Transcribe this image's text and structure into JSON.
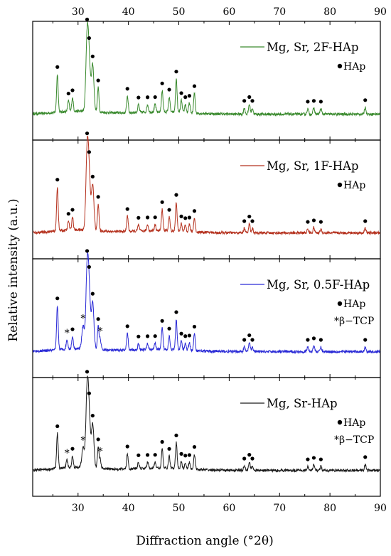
{
  "chart_data": {
    "type": "line",
    "xlabel": "Diffraction angle (°2θ)",
    "ylabel": "Relative intensity (a.u.)",
    "xlim": [
      21,
      90
    ],
    "xticks": [
      30,
      40,
      50,
      60,
      70,
      80,
      90
    ],
    "grid": false,
    "legend_marker_label": "HAp",
    "legend_tcp_label": "*β−TCP",
    "hap_peak_positions": [
      25.9,
      28.1,
      28.9,
      31.8,
      32.2,
      32.9,
      34.0,
      39.8,
      42.0,
      43.8,
      45.3,
      46.7,
      48.1,
      49.5,
      50.5,
      51.3,
      52.1,
      53.1,
      63.0,
      64.0,
      64.6,
      75.6,
      76.8,
      78.2,
      87.0
    ],
    "tcp_peak_positions": [
      27.8,
      31.0,
      34.4
    ],
    "panels": [
      {
        "name": "Mg, Sr, 2F-HAp",
        "color": "#3a8a2e",
        "show_tcp": false,
        "peaks": [
          [
            25.9,
            0.5
          ],
          [
            28.1,
            0.14
          ],
          [
            28.9,
            0.18
          ],
          [
            31.8,
            0.95
          ],
          [
            32.2,
            0.6
          ],
          [
            32.9,
            0.62
          ],
          [
            34.0,
            0.32
          ],
          [
            39.8,
            0.22
          ],
          [
            42.0,
            0.1
          ],
          [
            43.8,
            0.1
          ],
          [
            45.3,
            0.1
          ],
          [
            46.7,
            0.28
          ],
          [
            48.1,
            0.2
          ],
          [
            49.5,
            0.44
          ],
          [
            50.5,
            0.16
          ],
          [
            51.3,
            0.11
          ],
          [
            52.1,
            0.13
          ],
          [
            53.1,
            0.26
          ],
          [
            63.0,
            0.08
          ],
          [
            64.0,
            0.13
          ],
          [
            64.6,
            0.08
          ],
          [
            75.6,
            0.07
          ],
          [
            76.8,
            0.08
          ],
          [
            78.2,
            0.07
          ],
          [
            87.0,
            0.09
          ]
        ]
      },
      {
        "name": "Mg, Sr, 1F-HAp",
        "color": "#b5321f",
        "show_tcp": false,
        "peaks": [
          [
            25.9,
            0.58
          ],
          [
            28.1,
            0.12
          ],
          [
            28.9,
            0.17
          ],
          [
            31.8,
            1.0
          ],
          [
            32.2,
            0.65
          ],
          [
            32.9,
            0.6
          ],
          [
            34.0,
            0.35
          ],
          [
            39.8,
            0.2
          ],
          [
            42.0,
            0.08
          ],
          [
            43.8,
            0.08
          ],
          [
            45.3,
            0.08
          ],
          [
            46.7,
            0.28
          ],
          [
            48.1,
            0.18
          ],
          [
            49.5,
            0.38
          ],
          [
            50.5,
            0.1
          ],
          [
            51.3,
            0.08
          ],
          [
            52.1,
            0.09
          ],
          [
            53.1,
            0.18
          ],
          [
            63.0,
            0.06
          ],
          [
            64.0,
            0.12
          ],
          [
            64.6,
            0.06
          ],
          [
            75.6,
            0.05
          ],
          [
            76.8,
            0.07
          ],
          [
            78.2,
            0.05
          ],
          [
            87.0,
            0.06
          ]
        ]
      },
      {
        "name": "Mg, Sr, 0.5F-HAp",
        "color": "#2a2ad6",
        "show_tcp": true,
        "peaks": [
          [
            25.9,
            0.58
          ],
          [
            27.8,
            0.12
          ],
          [
            28.9,
            0.16
          ],
          [
            31.0,
            0.3
          ],
          [
            31.8,
            1.0
          ],
          [
            32.2,
            0.7
          ],
          [
            32.9,
            0.62
          ],
          [
            34.0,
            0.3
          ],
          [
            34.4,
            0.14
          ],
          [
            39.8,
            0.22
          ],
          [
            42.0,
            0.08
          ],
          [
            43.8,
            0.08
          ],
          [
            45.3,
            0.08
          ],
          [
            46.7,
            0.28
          ],
          [
            48.1,
            0.18
          ],
          [
            49.5,
            0.4
          ],
          [
            50.5,
            0.12
          ],
          [
            51.3,
            0.09
          ],
          [
            52.1,
            0.1
          ],
          [
            53.1,
            0.22
          ],
          [
            63.0,
            0.06
          ],
          [
            64.0,
            0.12
          ],
          [
            64.6,
            0.06
          ],
          [
            75.6,
            0.06
          ],
          [
            76.8,
            0.08
          ],
          [
            78.2,
            0.06
          ],
          [
            87.0,
            0.06
          ]
        ]
      },
      {
        "name": "Mg, Sr-HAp",
        "color": "#1a1a1a",
        "show_tcp": true,
        "peaks": [
          [
            25.9,
            0.46
          ],
          [
            27.8,
            0.1
          ],
          [
            28.9,
            0.15
          ],
          [
            31.0,
            0.26
          ],
          [
            31.8,
            1.0
          ],
          [
            32.2,
            0.6
          ],
          [
            32.9,
            0.58
          ],
          [
            34.0,
            0.28
          ],
          [
            34.4,
            0.12
          ],
          [
            39.8,
            0.2
          ],
          [
            42.0,
            0.08
          ],
          [
            43.8,
            0.08
          ],
          [
            45.3,
            0.08
          ],
          [
            46.7,
            0.25
          ],
          [
            48.1,
            0.16
          ],
          [
            49.5,
            0.34
          ],
          [
            50.5,
            0.1
          ],
          [
            51.3,
            0.08
          ],
          [
            52.1,
            0.09
          ],
          [
            53.1,
            0.2
          ],
          [
            63.0,
            0.06
          ],
          [
            64.0,
            0.11
          ],
          [
            64.6,
            0.06
          ],
          [
            75.6,
            0.05
          ],
          [
            76.8,
            0.07
          ],
          [
            78.2,
            0.05
          ],
          [
            87.0,
            0.08
          ]
        ]
      }
    ]
  }
}
